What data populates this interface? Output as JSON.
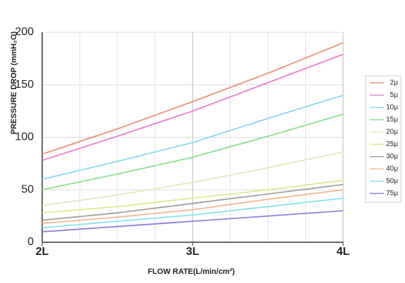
{
  "chart_data": {
    "type": "line",
    "ylabel": "PRESSURE DROP  (mmH₂O)",
    "xlabel": "FLOW RATE(L/min/cm²)",
    "x": [
      2,
      2.5,
      3,
      3.5,
      4
    ],
    "xlim": [
      2,
      4
    ],
    "xticks": [
      {
        "value": 2,
        "label": "2L"
      },
      {
        "value": 3,
        "label": "3L"
      },
      {
        "value": 4,
        "label": "4L"
      }
    ],
    "xminorticks": [
      2.25,
      2.5,
      2.75,
      3.25,
      3.5,
      3.75
    ],
    "ylim": [
      0,
      200
    ],
    "yticks": [
      0,
      50,
      100,
      150,
      200
    ],
    "grid": true,
    "legend": "right",
    "series": [
      {
        "name": "2μ",
        "color": "#e8907a",
        "values": [
          84,
          108,
          134,
          161,
          190
        ]
      },
      {
        "name": "5μ",
        "color": "#e880d0",
        "values": [
          78,
          101,
          125,
          152,
          179
        ]
      },
      {
        "name": "10μ",
        "color": "#8ad8ec",
        "values": [
          60,
          77,
          95,
          118,
          140
        ]
      },
      {
        "name": "15μ",
        "color": "#88e090",
        "values": [
          50,
          65,
          81,
          101,
          122
        ]
      },
      {
        "name": "20μ",
        "color": "#e4e8bc",
        "values": [
          35,
          45,
          57,
          71,
          86
        ]
      },
      {
        "name": "25μ",
        "color": "#dcec90",
        "values": [
          28,
          34,
          42,
          50,
          59
        ]
      },
      {
        "name": "30μ",
        "color": "#a0a0a0",
        "values": [
          21,
          28,
          37,
          46,
          55
        ]
      },
      {
        "name": "40μ",
        "color": "#f0b890",
        "values": [
          18,
          24,
          31,
          41,
          50
        ]
      },
      {
        "name": "50μ",
        "color": "#80e8f0",
        "values": [
          14,
          20,
          26,
          34,
          42
        ]
      },
      {
        "name": "75μ",
        "color": "#9080e0",
        "values": [
          10,
          15,
          20,
          25,
          30
        ]
      }
    ]
  }
}
